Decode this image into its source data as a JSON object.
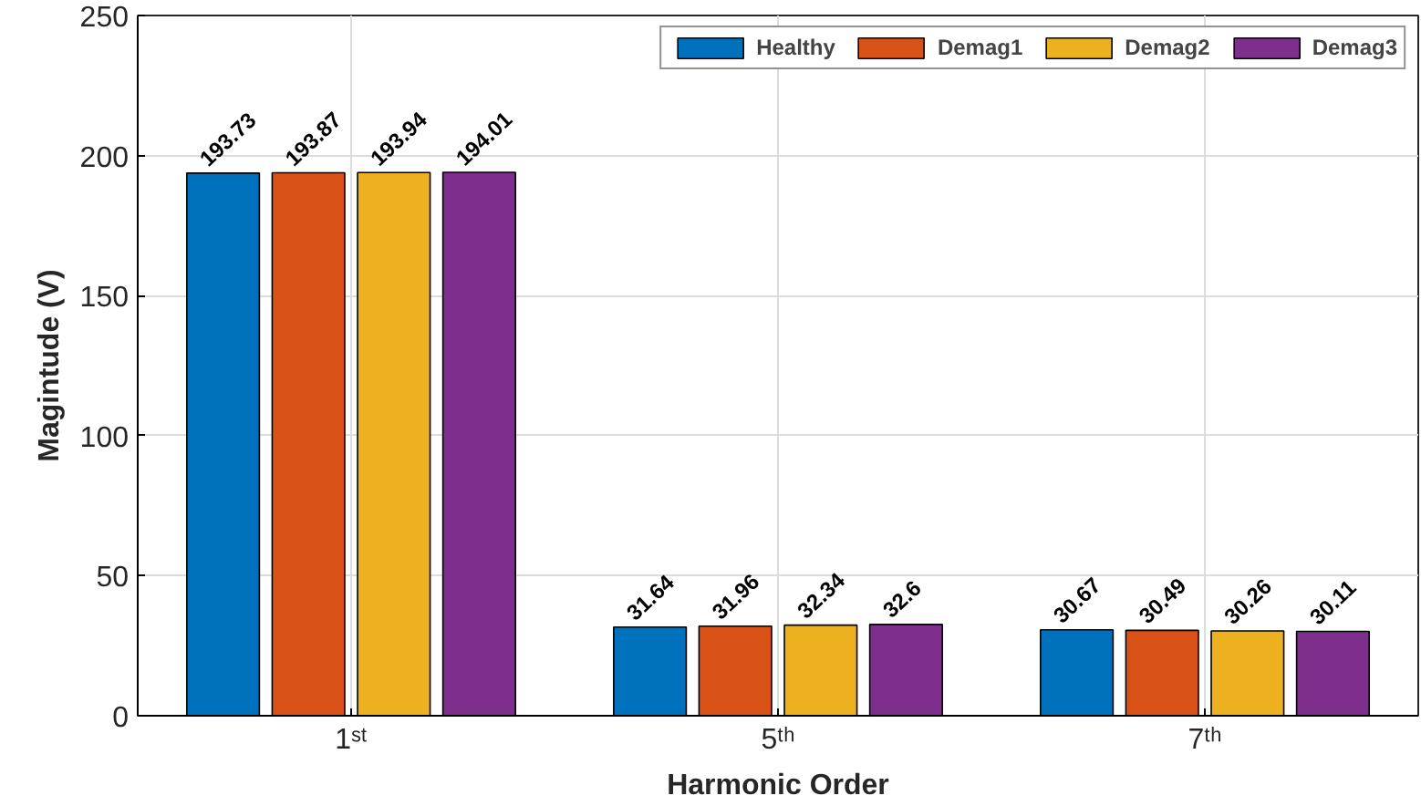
{
  "chart_data": {
    "type": "bar",
    "xlabel": "Harmonic Order",
    "ylabel": "Magintude (V)",
    "categories": [
      "1ˢᵗ",
      "5ᵗʰ",
      "7ᵗʰ"
    ],
    "series": [
      {
        "name": "Healthy",
        "color": "#0072bd",
        "values": [
          193.73,
          31.64,
          30.67
        ]
      },
      {
        "name": "Demag1",
        "color": "#d95319",
        "values": [
          193.87,
          31.96,
          30.49
        ]
      },
      {
        "name": "Demag2",
        "color": "#edb120",
        "values": [
          193.94,
          32.34,
          30.26
        ]
      },
      {
        "name": "Demag3",
        "color": "#7e2f8e",
        "values": [
          194.01,
          32.6,
          30.11
        ]
      }
    ],
    "ylim": [
      0,
      250
    ],
    "yticks": [
      0,
      50,
      100,
      150,
      200,
      250
    ],
    "grid": true,
    "legend": "top right",
    "data_labels": true
  }
}
